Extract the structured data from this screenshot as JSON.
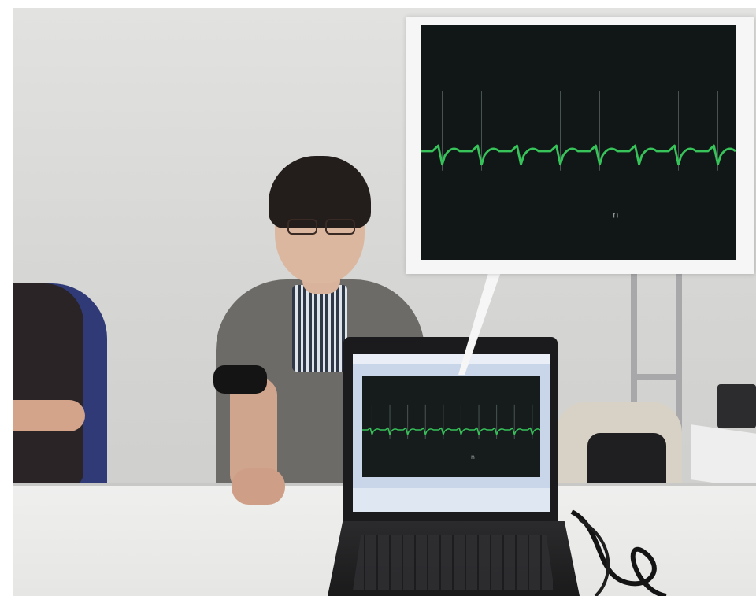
{
  "scene": {
    "description_visible_text": "",
    "ecg": {
      "trace_color": "#37c25a",
      "spike_color": "#6f7a78",
      "background": "#151c1b",
      "beats_callout": 8,
      "beats_laptop": 10,
      "marker_glyph": "n"
    },
    "laptop_screen": {
      "frame_color": "#c9d6ea",
      "taskbar_color": "#dfe7f3"
    },
    "colors": {
      "wall": "#d8d8d6",
      "cardigan": "#6c6b68",
      "chair": "#2f3a77",
      "cuff": "#141414"
    }
  }
}
